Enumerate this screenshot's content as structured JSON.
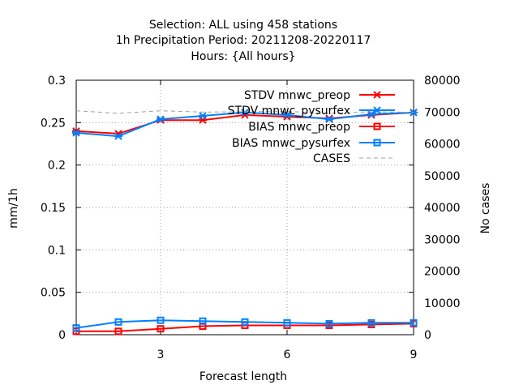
{
  "chart_data": {
    "type": "line",
    "title_lines": [
      "Selection: ALL using   458 stations",
      "1h Precipitation    Period: 20211208-20220117",
      "Hours: {All hours}"
    ],
    "xlabel": "Forecast length",
    "ylabel": "mm/1h",
    "y2label": "No cases",
    "xlim": [
      1,
      9
    ],
    "ylim": [
      0,
      0.3
    ],
    "y2lim": [
      0,
      80000
    ],
    "xticks": [
      3,
      6,
      9
    ],
    "xtick_labels": [
      "3",
      "6",
      "9"
    ],
    "yticks": [
      0,
      0.05,
      0.1,
      0.15,
      0.2,
      0.25,
      0.3
    ],
    "ytick_labels": [
      "0",
      "0.05",
      "0.1",
      "0.15",
      "0.2",
      "0.25",
      "0.3"
    ],
    "y2ticks": [
      0,
      10000,
      20000,
      30000,
      40000,
      50000,
      60000,
      70000,
      80000
    ],
    "y2tick_labels": [
      "0",
      "10000",
      "20000",
      "30000",
      "40000",
      "50000",
      "60000",
      "70000",
      "80000"
    ],
    "grid": true,
    "legend_position": "top-right",
    "x": [
      1,
      2,
      3,
      4,
      5,
      6,
      7,
      8,
      9
    ],
    "series": [
      {
        "name": "STDV mnwc_preop",
        "axis": "y1",
        "color": "#ff0000",
        "marker": "star",
        "dash": "solid",
        "values": [
          0.24,
          0.237,
          0.253,
          0.253,
          0.259,
          0.257,
          0.255,
          0.259,
          0.262
        ]
      },
      {
        "name": "STDV mnwc_pysurfex",
        "axis": "y1",
        "color": "#0080ff",
        "marker": "star",
        "dash": "solid",
        "values": [
          0.238,
          0.234,
          0.254,
          0.258,
          0.262,
          0.259,
          0.254,
          0.26,
          0.262
        ]
      },
      {
        "name": "BIAS mnwc_preop",
        "axis": "y1",
        "color": "#ff0000",
        "marker": "square",
        "dash": "solid",
        "values": [
          0.004,
          0.004,
          0.007,
          0.01,
          0.011,
          0.011,
          0.011,
          0.012,
          0.013
        ]
      },
      {
        "name": "BIAS mnwc_pysurfex",
        "axis": "y1",
        "color": "#0080ff",
        "marker": "square",
        "dash": "solid",
        "values": [
          0.008,
          0.015,
          0.017,
          0.016,
          0.015,
          0.014,
          0.013,
          0.014,
          0.014
        ]
      },
      {
        "name": "CASES",
        "axis": "y2",
        "color": "#a0a0a0",
        "marker": "none",
        "dash": "dashed",
        "values": [
          70400,
          69600,
          70400,
          70000,
          70100,
          70200,
          69600,
          70100,
          69900
        ]
      }
    ]
  },
  "colors": {
    "stdv_preop": "#ff0000",
    "stdv_pysurfex": "#0080ff",
    "cases": "#a0a0a0",
    "grid": "#a0a0a0"
  }
}
